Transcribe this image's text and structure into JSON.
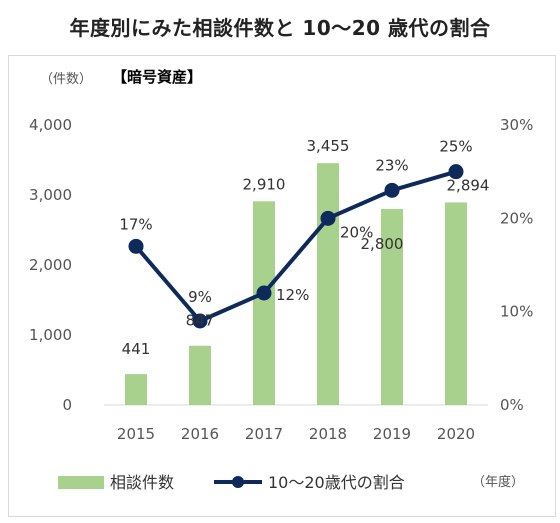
{
  "chart_data": {
    "type": "bar",
    "title": "年度別にみた相談件数と 10〜20 歳代の割合",
    "subtitle": "【暗号資産】",
    "y_unit": "（件数）",
    "x_unit": "（年度）",
    "categories": [
      "2015",
      "2016",
      "2017",
      "2018",
      "2019",
      "2020"
    ],
    "ylim": [
      0,
      4000
    ],
    "yticks": [
      "0",
      "1,000",
      "2,000",
      "3,000",
      "4,000"
    ],
    "y2lim": [
      0,
      30
    ],
    "y2ticks": [
      "0%",
      "10%",
      "20%",
      "30%"
    ],
    "grid": false,
    "legend_position": "bottom",
    "series": [
      {
        "name": "相談件数",
        "type": "bar",
        "axis": "left",
        "color": "#a9d18e",
        "values": [
          441,
          847,
          2910,
          3455,
          2800,
          2894
        ],
        "labels": [
          "441",
          "847",
          "2,910",
          "3,455",
          "2,800",
          "2,894"
        ]
      },
      {
        "name": "10〜20歳代の割合",
        "type": "line",
        "axis": "right",
        "color": "#0d2a5a",
        "values": [
          17,
          9,
          12,
          20,
          23,
          25
        ],
        "labels": [
          "17%",
          "9%",
          "12%",
          "20%",
          "23%",
          "25%"
        ]
      }
    ]
  }
}
